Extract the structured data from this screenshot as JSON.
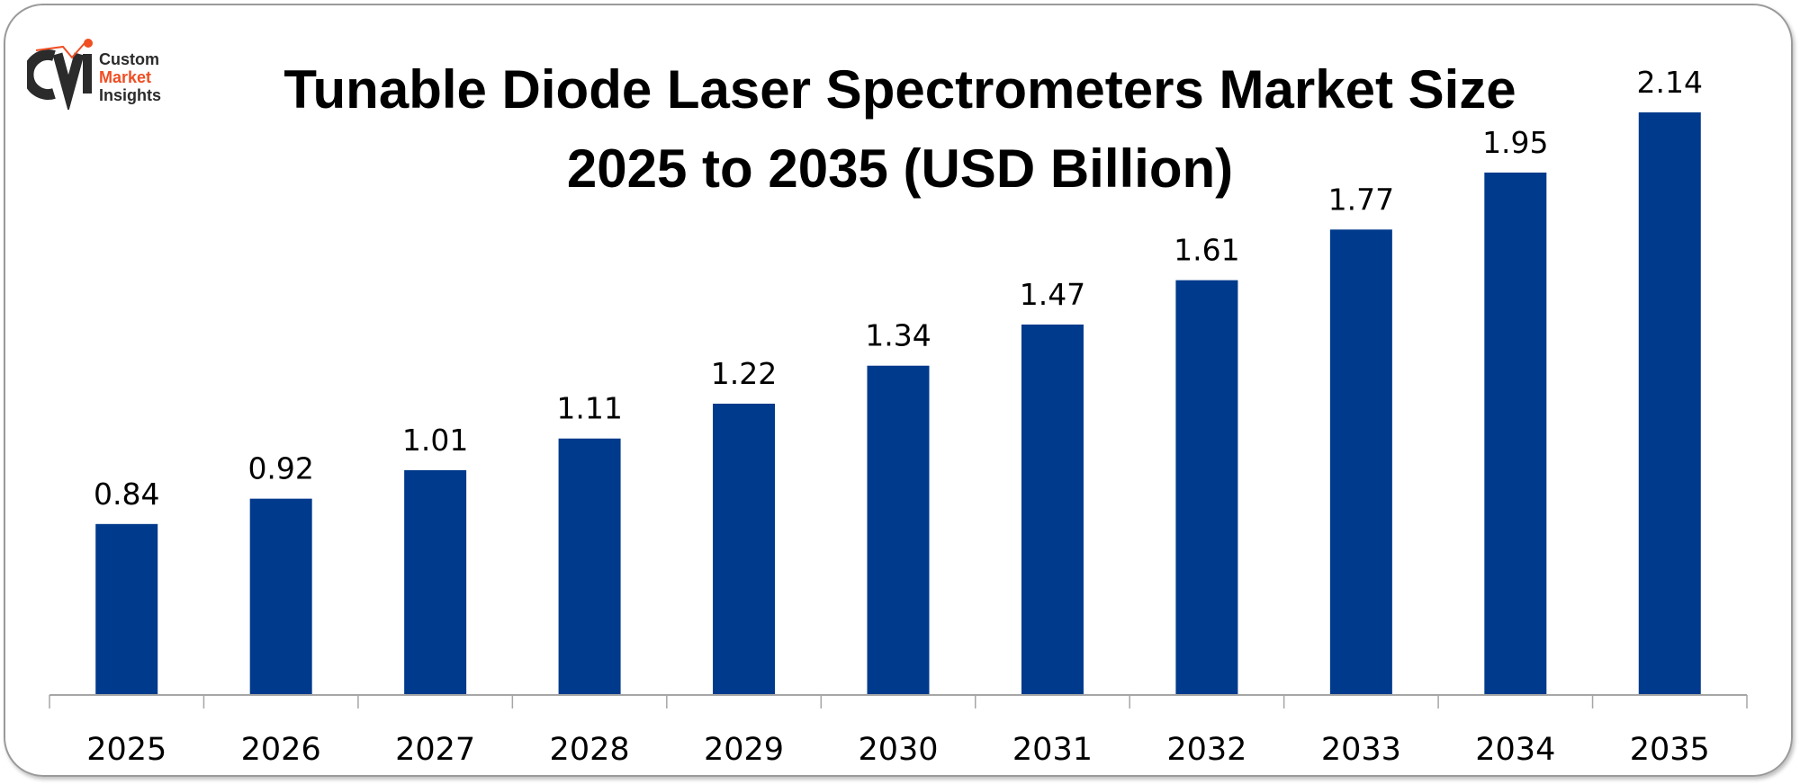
{
  "logo": {
    "line1": "Custom",
    "line2": "Market",
    "line3": "Insights",
    "colors": {
      "dark": "#2b2b2b",
      "accent": "#f04e23"
    }
  },
  "chart_data": {
    "type": "bar",
    "title_line1": "Tunable Diode Laser Spectrometers Market Size",
    "title_line2": "2025 to 2035 (USD Billion)",
    "categories": [
      "2025",
      "2026",
      "2027",
      "2028",
      "2029",
      "2030",
      "2031",
      "2032",
      "2033",
      "2034",
      "2035"
    ],
    "values": [
      0.84,
      0.92,
      1.01,
      1.11,
      1.22,
      1.34,
      1.47,
      1.61,
      1.77,
      1.95,
      2.14
    ],
    "data_labels": [
      "0.84",
      "0.92",
      "1.01",
      "1.11",
      "1.22",
      "1.34",
      "1.47",
      "1.61",
      "1.77",
      "1.95",
      "2.14"
    ],
    "xlabel": "",
    "ylabel": "",
    "grid": false,
    "legend": "none",
    "bar_color": "#003a8c"
  }
}
